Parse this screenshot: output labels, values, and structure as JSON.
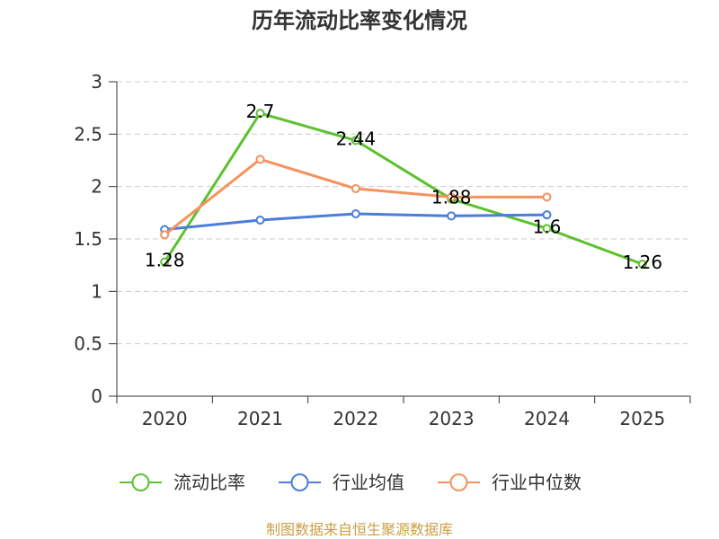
{
  "chart_data": {
    "type": "line",
    "title": "历年流动比率变化情况",
    "categories": [
      "2020",
      "2021",
      "2022",
      "2023",
      "2024",
      "2025"
    ],
    "xlabel": "",
    "ylabel": "",
    "ylim": [
      0,
      3
    ],
    "yticks": [
      0,
      0.5,
      1,
      1.5,
      2,
      2.5,
      3
    ],
    "ytick_labels": [
      "0",
      "0.5",
      "1",
      "1.5",
      "2",
      "2.5",
      "3"
    ],
    "grid": true,
    "legend": "bottom-center",
    "series": [
      {
        "name": "流动比率",
        "color": "#5cc22e",
        "values": [
          1.28,
          2.7,
          2.44,
          1.88,
          1.6,
          1.26
        ],
        "data_labels": [
          "1.28",
          "2.7",
          "2.44",
          "1.88",
          "1.6",
          "1.26"
        ]
      },
      {
        "name": "行业均值",
        "color": "#4a7ddc",
        "values": [
          1.59,
          1.68,
          1.74,
          1.72,
          1.73,
          null
        ]
      },
      {
        "name": "行业中位数",
        "color": "#f5925e",
        "values": [
          1.54,
          2.26,
          1.98,
          1.9,
          1.9,
          null
        ]
      }
    ]
  },
  "footer": {
    "text": "制图数据来自恒生聚源数据库",
    "color": "#c9a046"
  }
}
